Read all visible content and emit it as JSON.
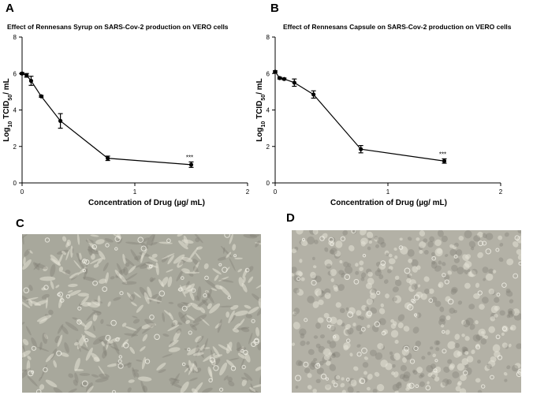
{
  "panels": {
    "a": "A",
    "b": "B",
    "c": "C",
    "d": "D"
  },
  "chart_data": [
    {
      "type": "line",
      "title": "Effect of Rennesans Syrup on SARS-Cov-2 production on VERO cells",
      "xlabel": "Concentration of Drug (µg/ mL)",
      "ylabel_parts": {
        "base": "Log",
        "base_sub": "10",
        "mid": " TCID",
        "mid_sub": "50",
        "tail": "/ mL"
      },
      "xlim": [
        0,
        2
      ],
      "ylim": [
        0,
        8
      ],
      "xticks": [
        0,
        1,
        2
      ],
      "yticks": [
        0,
        2,
        4,
        6,
        8
      ],
      "x": [
        0,
        0.04,
        0.08,
        0.17,
        0.34,
        0.76,
        1.5
      ],
      "y": [
        6.0,
        5.9,
        5.6,
        4.75,
        3.4,
        1.35,
        1.0
      ],
      "err": [
        0.05,
        0.1,
        0.25,
        0.05,
        0.4,
        0.12,
        0.15
      ],
      "annotation": "***",
      "annotation_index": 6,
      "grid": false
    },
    {
      "type": "line",
      "title": "Effect of Rennesans Capsule on SARS-Cov-2 production on VERO cells",
      "xlabel": "Concentration of Drug (µg/ mL)",
      "ylabel_parts": {
        "base": "Log",
        "base_sub": "10",
        "mid": " TCID",
        "mid_sub": "50",
        "tail": "/ mL"
      },
      "xlim": [
        0,
        2
      ],
      "ylim": [
        0,
        8
      ],
      "xticks": [
        0,
        1,
        2
      ],
      "yticks": [
        0,
        2,
        4,
        6,
        8
      ],
      "x": [
        0,
        0.04,
        0.08,
        0.17,
        0.34,
        0.76,
        1.5
      ],
      "y": [
        6.1,
        5.75,
        5.7,
        5.5,
        4.85,
        1.85,
        1.2
      ],
      "err": [
        0.05,
        0.05,
        0.05,
        0.2,
        0.2,
        0.2,
        0.12
      ],
      "annotation": "***",
      "annotation_index": 6,
      "grid": false
    }
  ],
  "colors": {
    "line": "#000000",
    "photo_c_base": "#a8a89c",
    "photo_d_base": "#b3b1a6",
    "photo_cell": "#e4e2d6",
    "photo_dark": "#7d7b72"
  }
}
